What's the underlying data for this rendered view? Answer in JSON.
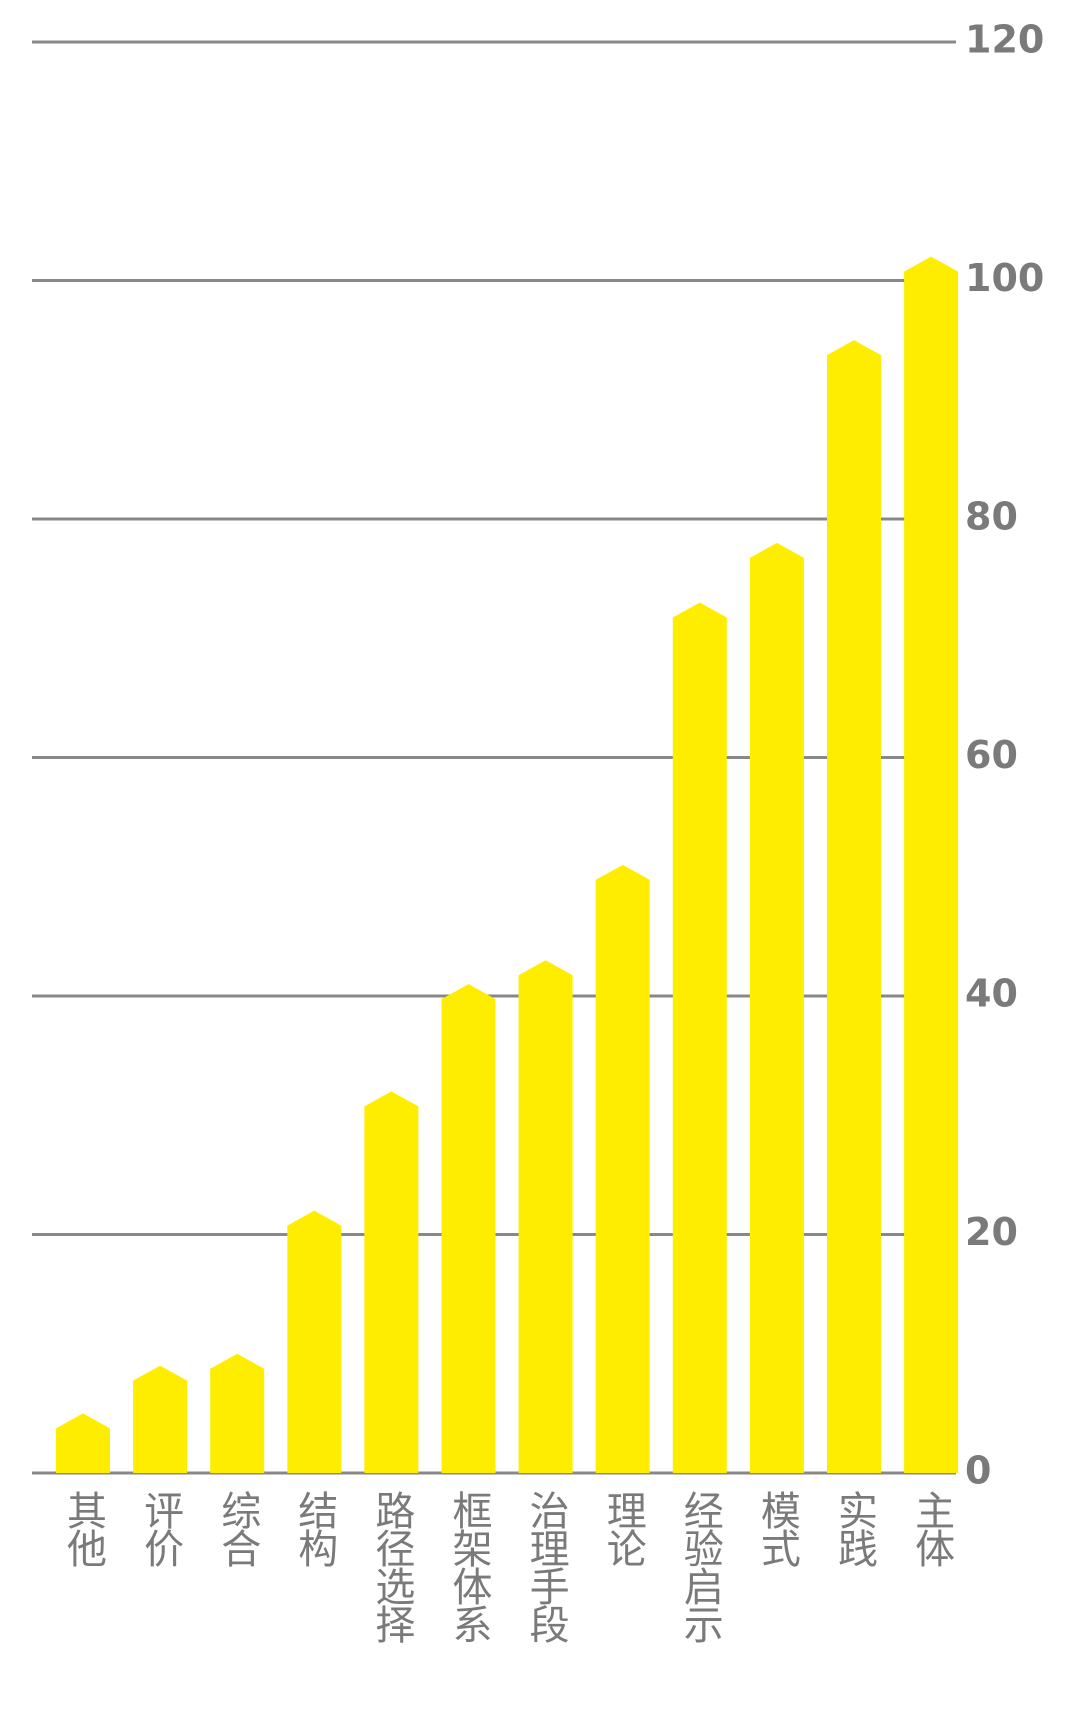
{
  "chart_data": {
    "type": "bar",
    "categories": [
      "其他",
      "评价",
      "综合",
      "结构",
      "路径选择",
      "框架体系",
      "治理手段",
      "理论",
      "经验启示",
      "模式",
      "实践",
      "主体"
    ],
    "values": [
      5,
      9,
      10,
      22,
      32,
      41,
      43,
      51,
      73,
      78,
      95,
      102
    ],
    "color": "#FFED00",
    "ylim": [
      0,
      120
    ],
    "yticks": [
      0,
      20,
      40,
      60,
      80,
      100,
      120
    ],
    "grid": true
  }
}
